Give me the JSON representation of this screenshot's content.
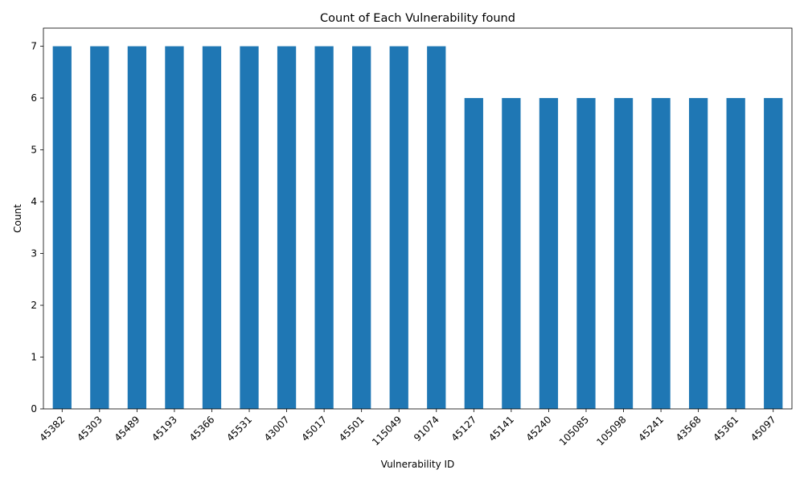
{
  "chart_data": {
    "type": "bar",
    "title": "Count of Each Vulnerability found",
    "xlabel": "Vulnerability ID",
    "ylabel": "Count",
    "categories": [
      "45382",
      "45303",
      "45489",
      "45193",
      "45366",
      "45531",
      "43007",
      "45017",
      "45501",
      "115049",
      "91074",
      "45127",
      "45141",
      "45240",
      "105085",
      "105098",
      "45241",
      "43568",
      "45361",
      "45097"
    ],
    "values": [
      7,
      7,
      7,
      7,
      7,
      7,
      7,
      7,
      7,
      7,
      7,
      6,
      6,
      6,
      6,
      6,
      6,
      6,
      6,
      6
    ],
    "ylim": [
      0,
      7.35
    ],
    "yticks": [
      0,
      1,
      2,
      3,
      4,
      5,
      6,
      7
    ],
    "grid": false,
    "legend": "none",
    "bar_color": "#1f77b4",
    "x_tick_rotation": 45
  }
}
